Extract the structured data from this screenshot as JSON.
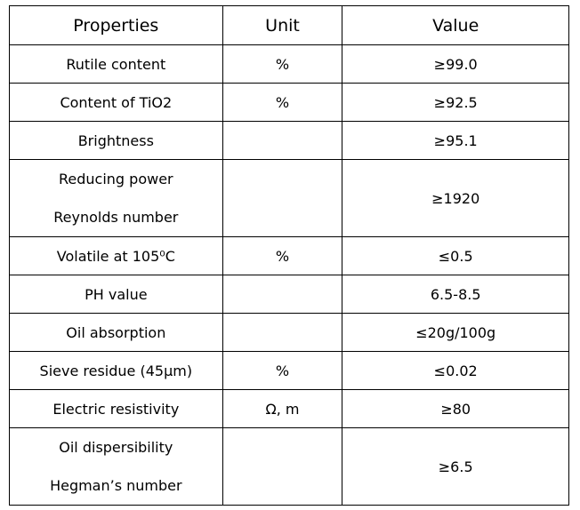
{
  "table": {
    "header": [
      "Properties",
      "Unit",
      "Value"
    ],
    "rows": [
      {
        "property": "Rutile content",
        "unit": "%",
        "value": "≥99.0"
      },
      {
        "property": "Content of TiO2",
        "unit": "%",
        "value": "≥92.5"
      },
      {
        "property": "Brightness",
        "value": "≥95.1"
      },
      {
        "property": [
          "Reducing power",
          "Reynolds number"
        ],
        "value": "≥1920"
      },
      {
        "property": "Volatile at 105⁰C",
        "unit": "%",
        "value": "≤0.5"
      },
      {
        "property": "PH value",
        "value": "6.5-8.5"
      },
      {
        "property": "Oil absorption",
        "value": "≤20g/100g"
      },
      {
        "property": "Sieve residue (45μm)",
        "unit": "%",
        "value": "≤0.02"
      },
      {
        "property": "Electric resistivity",
        "unit": "Ω, m",
        "value": "≥80"
      },
      {
        "property": [
          "Oil dispersibility",
          "Hegman’s number"
        ],
        "value": "≥6.5"
      }
    ]
  }
}
